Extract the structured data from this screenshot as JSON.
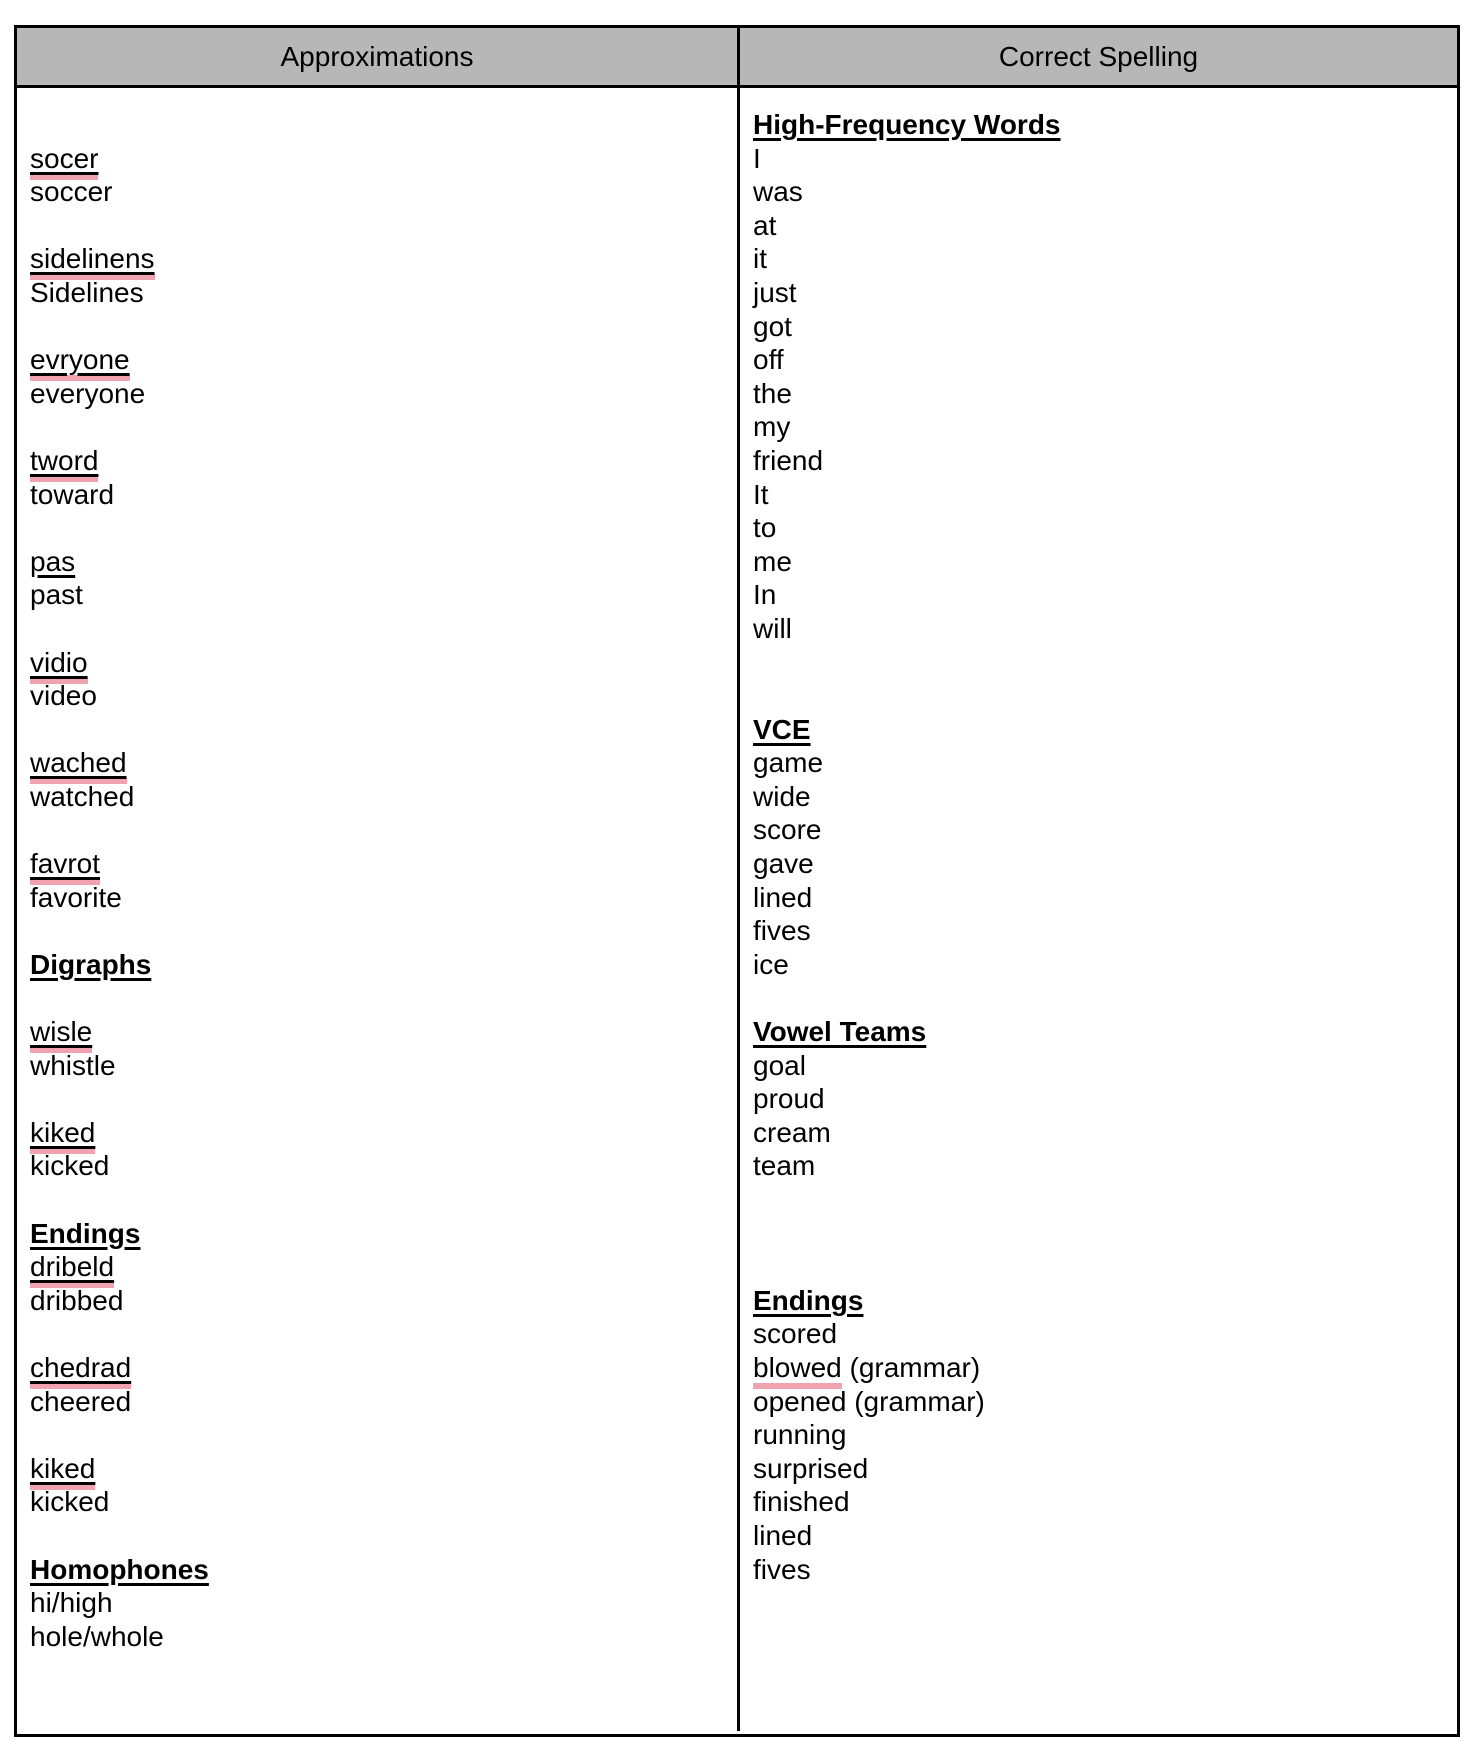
{
  "header": {
    "left_label": "Approximations",
    "right_label": "Correct Spelling"
  },
  "colors": {
    "header_bg": "#b7b7b7",
    "border": "#000000",
    "highlight_pink": "#efa3ae",
    "text": "#000000"
  },
  "left_column": {
    "lines": [
      {
        "s": "blank"
      },
      {
        "t": "socer",
        "s": "miss"
      },
      {
        "t": "soccer",
        "s": "plain"
      },
      {
        "s": "blank"
      },
      {
        "t": "sidelinens",
        "s": "miss"
      },
      {
        "t": "Sidelines",
        "s": "plain"
      },
      {
        "s": "blank"
      },
      {
        "t": "evryone",
        "s": "miss"
      },
      {
        "t": "everyone",
        "s": "plain"
      },
      {
        "s": "blank"
      },
      {
        "t": "tword",
        "s": "miss"
      },
      {
        "t": "toward",
        "s": "plain"
      },
      {
        "s": "blank"
      },
      {
        "t": "pas",
        "s": "missplain"
      },
      {
        "t": "past",
        "s": "plain"
      },
      {
        "s": "blank"
      },
      {
        "t": "vidio",
        "s": "miss"
      },
      {
        "t": "video",
        "s": "plain"
      },
      {
        "s": "blank"
      },
      {
        "t": "wached",
        "s": "miss"
      },
      {
        "t": "watched",
        "s": "plain"
      },
      {
        "s": "blank"
      },
      {
        "t": "favrot",
        "s": "miss"
      },
      {
        "t": "favorite",
        "s": "plain"
      },
      {
        "s": "blank"
      },
      {
        "t": "Digraphs",
        "s": "head"
      },
      {
        "s": "blank"
      },
      {
        "t": "wisle",
        "s": "miss"
      },
      {
        "t": "whistle",
        "s": "plain"
      },
      {
        "s": "blank"
      },
      {
        "t": "kiked",
        "s": "miss"
      },
      {
        "t": "kicked",
        "s": "plain"
      },
      {
        "s": "blank"
      },
      {
        "t": "Endings",
        "s": "head"
      },
      {
        "t": "dribeld",
        "s": "miss"
      },
      {
        "t": "dribbed",
        "s": "plain"
      },
      {
        "s": "blank"
      },
      {
        "t": "chedrad",
        "s": "miss"
      },
      {
        "t": "cheered",
        "s": "plain"
      },
      {
        "s": "blank"
      },
      {
        "t": "kiked",
        "s": "miss"
      },
      {
        "t": "kicked",
        "s": "plain"
      },
      {
        "s": "blank"
      },
      {
        "t": "Homophones",
        "s": "head"
      },
      {
        "t": "hi/high",
        "s": "plain"
      },
      {
        "t": "hole/whole",
        "s": "plain"
      }
    ]
  },
  "right_column": {
    "lines": [
      {
        "t": "High-Frequency Words",
        "s": "head"
      },
      {
        "t": "I",
        "s": "plain"
      },
      {
        "t": "was",
        "s": "plain"
      },
      {
        "t": "at",
        "s": "plain"
      },
      {
        "t": "it",
        "s": "plain"
      },
      {
        "t": "just",
        "s": "plain"
      },
      {
        "t": "got",
        "s": "plain"
      },
      {
        "t": "off",
        "s": "plain"
      },
      {
        "t": "the",
        "s": "plain"
      },
      {
        "t": "my",
        "s": "plain"
      },
      {
        "t": "friend",
        "s": "plain"
      },
      {
        "t": "It",
        "s": "plain"
      },
      {
        "t": "to",
        "s": "plain"
      },
      {
        "t": "me",
        "s": "plain"
      },
      {
        "t": "In",
        "s": "plain"
      },
      {
        "t": "will",
        "s": "plain"
      },
      {
        "s": "blank"
      },
      {
        "s": "blank"
      },
      {
        "t": "VCE",
        "s": "head"
      },
      {
        "t": "game",
        "s": "plain"
      },
      {
        "t": "wide",
        "s": "plain"
      },
      {
        "t": "score",
        "s": "plain"
      },
      {
        "t": "gave",
        "s": "plain"
      },
      {
        "t": "lined",
        "s": "plain"
      },
      {
        "t": "fives",
        "s": "plain"
      },
      {
        "t": "ice",
        "s": "plain"
      },
      {
        "s": "blank"
      },
      {
        "t": "Vowel Teams",
        "s": "head"
      },
      {
        "t": "goal",
        "s": "plain"
      },
      {
        "t": "proud",
        "s": "plain"
      },
      {
        "t": "cream",
        "s": "plain"
      },
      {
        "t": "team",
        "s": "plain"
      },
      {
        "s": "blank"
      },
      {
        "s": "blank"
      },
      {
        "s": "blank"
      },
      {
        "t": "Endings",
        "s": "head"
      },
      {
        "t": "scored",
        "s": "plain"
      },
      {
        "t": "blowed",
        "s": "pinkword",
        "suffix": " (grammar)"
      },
      {
        "t": "opened (grammar)",
        "s": "plain"
      },
      {
        "t": "running",
        "s": "plain"
      },
      {
        "t": "surprised",
        "s": "plain"
      },
      {
        "t": "finished",
        "s": "plain"
      },
      {
        "t": "lined",
        "s": "plain"
      },
      {
        "t": "fives",
        "s": "plain"
      }
    ]
  }
}
